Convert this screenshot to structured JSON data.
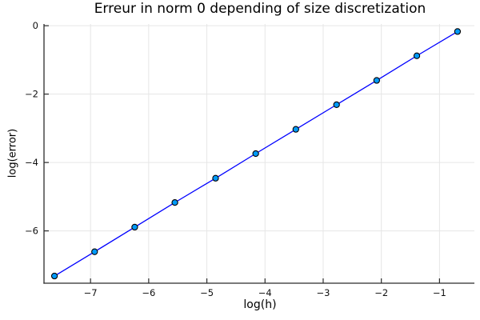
{
  "chart_data": {
    "type": "line",
    "title": "Erreur in norm 0 depending of size discretization",
    "xlabel": "log(h)",
    "ylabel": "log(error)",
    "x": [
      -7.62,
      -6.93,
      -6.24,
      -5.55,
      -4.85,
      -4.16,
      -3.47,
      -2.77,
      -2.08,
      -1.39,
      -0.69
    ],
    "y": [
      -7.32,
      -6.61,
      -5.89,
      -5.17,
      -4.46,
      -3.74,
      -3.03,
      -2.31,
      -1.6,
      -0.88,
      -0.17
    ],
    "slope_estimate": 1.03,
    "xticks": [
      -7,
      -6,
      -5,
      -4,
      -3,
      -2,
      -1
    ],
    "xtick_labels": [
      "−7",
      "−6",
      "−5",
      "−4",
      "−3",
      "−2",
      "−1"
    ],
    "yticks": [
      0,
      -2,
      -4,
      -6
    ],
    "ytick_labels": [
      "0",
      "−2",
      "−4",
      "−6"
    ],
    "xlim": [
      -7.8,
      -0.4
    ],
    "ylim": [
      -7.53,
      0.05
    ],
    "grid": true,
    "legend": "none",
    "marker": "circle",
    "colors": {
      "line": "#0000ff",
      "marker_fill": "#009af9",
      "marker_stroke": "#000000",
      "grid": "#e6e6e6",
      "axis": "#2b2b2b",
      "text": "#111111",
      "background": "#ffffff"
    }
  }
}
